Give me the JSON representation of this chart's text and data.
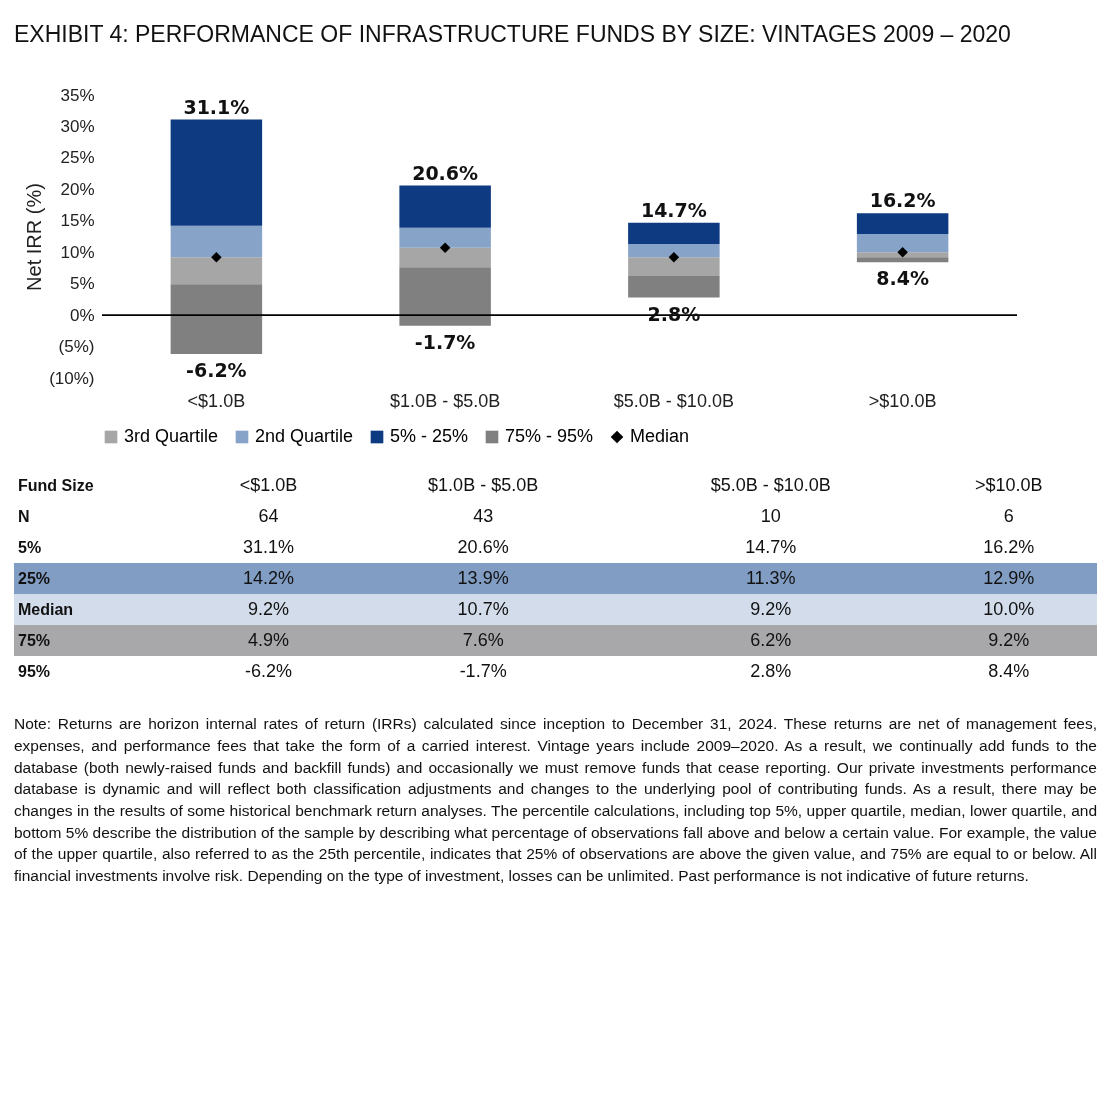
{
  "chart_data": [
    {
      "type": "bar",
      "title": "EXHIBIT 4: PERFORMANCE OF INFRASTRUCTURE FUNDS BY SIZE: VINTAGES 2009 – 2020",
      "ylabel": "Net IRR (%)",
      "categories": [
        "<$1.0B",
        "$1.0B - $5.0B",
        "$5.0B - $10.0B",
        ">$10.0B"
      ],
      "series": [
        {
          "name": "3rd Quartile",
          "color": "#a6a6a6",
          "base": [
            4.9,
            7.6,
            6.2,
            9.2
          ],
          "values": [
            4.3,
            3.1,
            3.0,
            0.8
          ]
        },
        {
          "name": "2nd Quartile",
          "color": "#87a3c8",
          "base": [
            9.2,
            10.7,
            9.2,
            10.0
          ],
          "values": [
            5.0,
            3.2,
            2.1,
            2.9
          ]
        },
        {
          "name": "5% - 25%",
          "color": "#0d3a80",
          "base": [
            14.2,
            13.9,
            11.3,
            12.9
          ],
          "values": [
            16.9,
            6.7,
            3.4,
            3.3
          ]
        },
        {
          "name": "75% - 95%",
          "color": "#808080",
          "base": [
            -6.2,
            -1.7,
            2.8,
            8.4
          ],
          "values": [
            11.1,
            9.3,
            3.4,
            0.8
          ]
        },
        {
          "name": "Median",
          "type": "scatter",
          "marker": "diamond",
          "color": "#000000",
          "x": [
            "<$1.0B",
            "$1.0B - $5.0B",
            "$5.0B - $10.0B",
            ">$10.0B"
          ],
          "values": [
            9.2,
            10.7,
            9.2,
            10.0
          ]
        }
      ],
      "ylim": [
        -10,
        35
      ],
      "yticks": [
        {
          "value": -10,
          "label": "(10%)"
        },
        {
          "value": -5,
          "label": "(5%)"
        },
        {
          "value": 0,
          "label": "0%"
        },
        {
          "value": 5,
          "label": "5%"
        },
        {
          "value": 10,
          "label": "10%"
        },
        {
          "value": 15,
          "label": "15%"
        },
        {
          "value": 20,
          "label": "20%"
        },
        {
          "value": 25,
          "label": "25%"
        },
        {
          "value": 30,
          "label": "30%"
        },
        {
          "value": 35,
          "label": "35%"
        }
      ],
      "ref_lines": [
        {
          "axis": "y",
          "value": 0,
          "color": "#000000"
        }
      ],
      "legend": "bottom",
      "annotations": [
        {
          "text": "31.1%",
          "x": "<$1.0B",
          "y": 31.1
        },
        {
          "text": "-6.2%",
          "x": "<$1.0B",
          "y": -6.2
        },
        {
          "text": "20.6%",
          "x": "$1.0B - $5.0B",
          "y": 20.6
        },
        {
          "text": "-1.7%",
          "x": "$1.0B - $5.0B",
          "y": -1.7
        },
        {
          "text": "14.7%",
          "x": "$5.0B - $10.0B",
          "y": 14.7
        },
        {
          "text": "2.8%",
          "x": "$5.0B - $10.0B",
          "y": 2.8
        },
        {
          "text": "16.2%",
          "x": ">$10.0B",
          "y": 16.2
        },
        {
          "text": "8.4%",
          "x": ">$10.0B",
          "y": 8.4
        }
      ]
    },
    {
      "type": "other",
      "ylabel": "Fund Size",
      "categories": [
        "<$1.0B",
        "$1.0B - $5.0B",
        "$5.0B - $10.0B",
        ">$10.0B"
      ],
      "y_categories": [
        "N",
        "5%",
        "25%",
        "Median",
        "75%",
        "95%"
      ],
      "colors": [
        "#ffffff",
        "#ffffff",
        "#819dc3",
        "#d2dcea",
        "#a8a8aa",
        "#ffffff"
      ],
      "cell_labels": [
        [
          "64",
          "43",
          "10",
          "6"
        ],
        [
          "31.1%",
          "20.6%",
          "14.7%",
          "16.2%"
        ],
        [
          "14.2%",
          "13.9%",
          "11.3%",
          "12.9%"
        ],
        [
          "9.2%",
          "10.7%",
          "9.2%",
          "10.0%"
        ],
        [
          "4.9%",
          "7.6%",
          "6.2%",
          "9.2%"
        ],
        [
          "-6.2%",
          "-1.7%",
          "2.8%",
          "8.4%"
        ]
      ],
      "annotations": [
        "Note: Returns are horizon internal rates of return (IRRs) calculated since inception to December 31, 2024. These returns are net of management fees, expenses, and performance fees that take the form of a carried interest. Vintage years include 2009–2020. As a result, we continually add funds to the database (both newly-raised funds and backfill funds) and occasionally we must remove funds that cease reporting. Our private investments performance database is dynamic and will reflect both classification adjustments and changes to the underlying pool of contributing funds. As a result, there may be changes in the results of some historical benchmark return analyses. The percentile calculations, including top 5%, upper quartile, median, lower quartile, and bottom 5% describe the distribution of the sample by describing what percentage of observations fall above and below a certain value. For example, the value of the upper quartile, also referred to as the 25th percentile, indicates that 25% of observations are above the given value, and 75% are equal to or below. All financial investments involve risk. Depending on the type of investment, losses can be unlimited. Past performance is not indicative of future returns."
      ]
    }
  ]
}
